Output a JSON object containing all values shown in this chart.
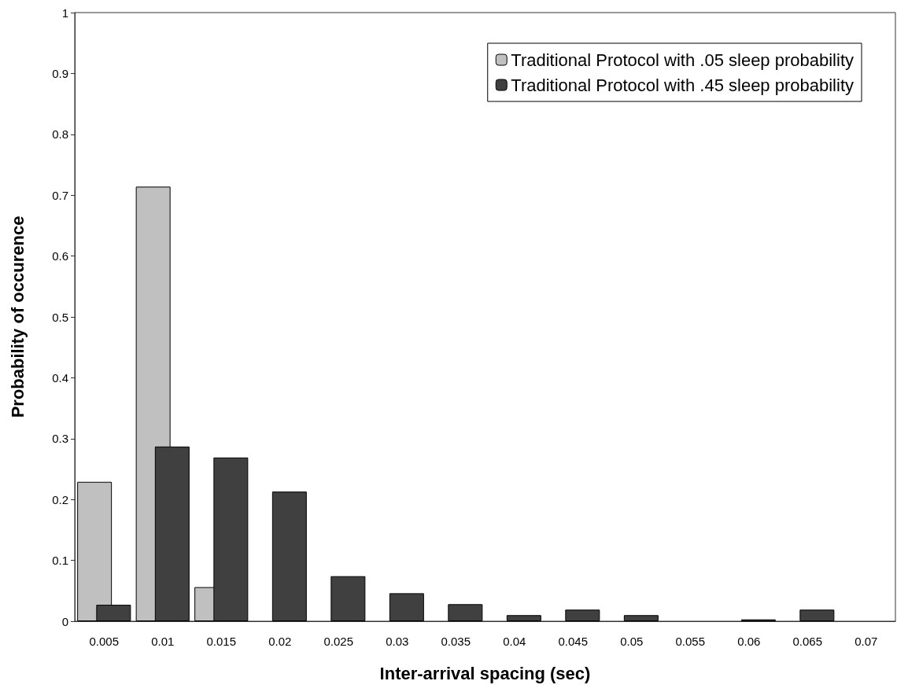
{
  "chart_data": {
    "type": "bar",
    "xlabel": "Inter-arrival spacing (sec)",
    "ylabel": "Probability of occurence",
    "categories": [
      "0.005",
      "0.01",
      "0.015",
      "0.02",
      "0.025",
      "0.03",
      "0.035",
      "0.04",
      "0.045",
      "0.05",
      "0.055",
      "0.06",
      "0.065",
      "0.07"
    ],
    "series": [
      {
        "name": "Traditional Protocol with .05 sleep probability",
        "color": "#c0c0c0",
        "values": [
          0.229,
          0.714,
          0.056,
          0,
          0,
          0,
          0,
          0,
          0,
          0,
          0,
          0,
          0,
          0
        ]
      },
      {
        "name": "Traditional Protocol with .45 sleep probability",
        "color": "#404040",
        "values": [
          0.027,
          0.287,
          0.269,
          0.213,
          0.074,
          0.046,
          0.028,
          0.01,
          0.019,
          0.01,
          0,
          0.003,
          0.019,
          0
        ]
      }
    ],
    "ylim": [
      0,
      1
    ],
    "yticks": [
      0,
      0.1,
      0.2,
      0.3,
      0.4,
      0.5,
      0.6,
      0.7,
      0.8,
      0.9,
      1
    ],
    "grid": false,
    "legend": "top right"
  }
}
